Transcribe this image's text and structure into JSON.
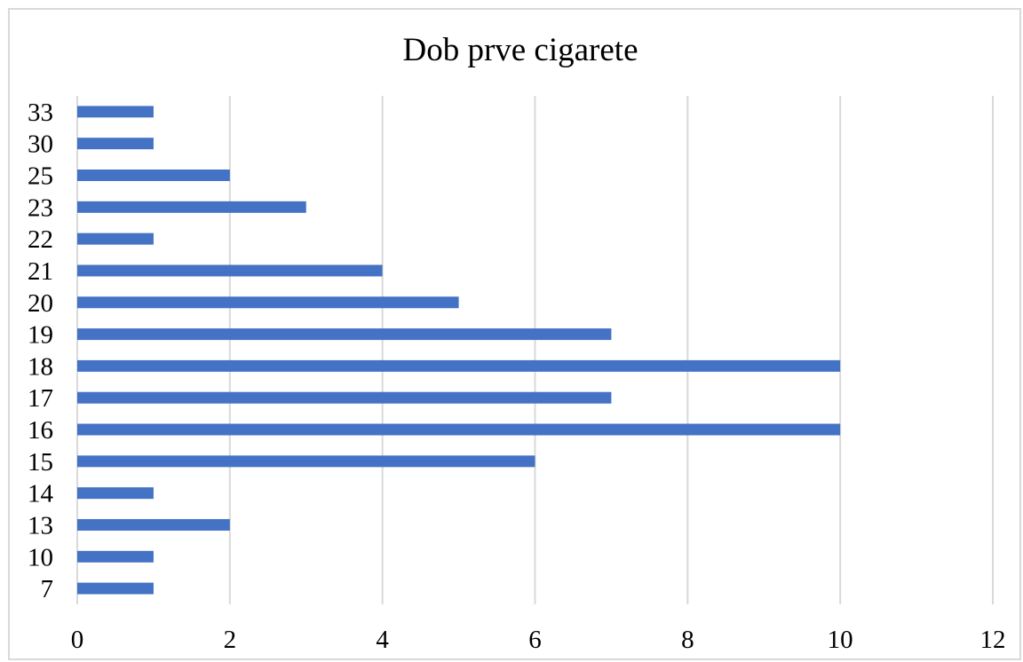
{
  "chart_data": {
    "type": "bar",
    "orientation": "horizontal",
    "title": "Dob prve cigarete",
    "xlabel": "",
    "ylabel": "",
    "categories": [
      "7",
      "10",
      "13",
      "14",
      "15",
      "16",
      "17",
      "18",
      "19",
      "20",
      "21",
      "22",
      "23",
      "25",
      "30",
      "33"
    ],
    "values": [
      1,
      1,
      2,
      1,
      6,
      10,
      7,
      10,
      7,
      5,
      4,
      1,
      3,
      2,
      1,
      1
    ],
    "xlim": [
      0,
      12
    ],
    "x_ticks": [
      "0",
      "2",
      "4",
      "6",
      "8",
      "10",
      "12"
    ],
    "grid": "vertical",
    "legend": "none",
    "bar_color": "#4472c4"
  }
}
